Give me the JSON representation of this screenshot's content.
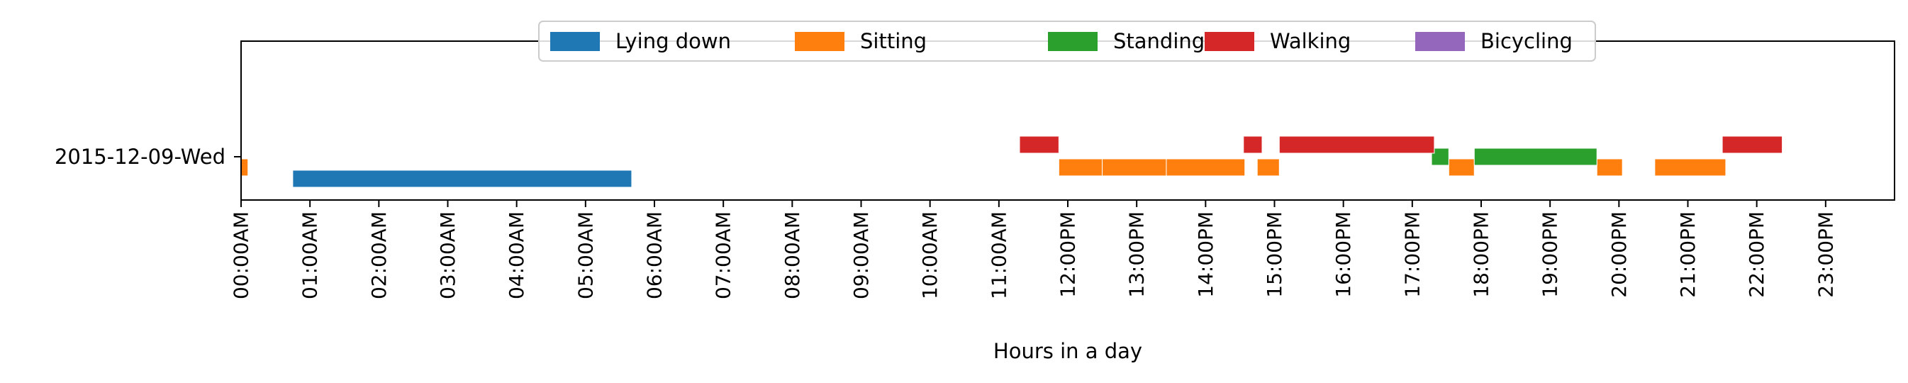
{
  "chart_data": {
    "type": "timeline",
    "title": "",
    "xlabel": "Hours in a day",
    "ylabel": "",
    "xlim": [
      0,
      24
    ],
    "grid": false,
    "legend_placement": "top-center",
    "rows": [
      "2015-12-09-Wed"
    ],
    "x_tick_values": [
      0,
      1,
      2,
      3,
      4,
      5,
      6,
      7,
      8,
      9,
      10,
      11,
      12,
      13,
      14,
      15,
      16,
      17,
      18,
      19,
      20,
      21,
      22,
      23
    ],
    "x_tick_labels": [
      "00:00AM",
      "01:00AM",
      "02:00AM",
      "03:00AM",
      "04:00AM",
      "05:00AM",
      "06:00AM",
      "07:00AM",
      "08:00AM",
      "09:00AM",
      "10:00AM",
      "11:00AM",
      "12:00PM",
      "13:00PM",
      "14:00PM",
      "15:00PM",
      "16:00PM",
      "17:00PM",
      "18:00PM",
      "19:00PM",
      "20:00PM",
      "21:00PM",
      "22:00PM",
      "23:00PM"
    ],
    "series": [
      {
        "name": "Lying down",
        "color": "#1f77b4",
        "segments": [
          [
            0.75,
            5.67
          ]
        ]
      },
      {
        "name": "Sitting",
        "color": "#ff7f0e",
        "segments": [
          [
            0.0,
            0.1
          ],
          [
            11.87,
            12.5
          ],
          [
            12.5,
            13.43
          ],
          [
            13.43,
            14.57
          ],
          [
            14.75,
            15.07
          ],
          [
            17.53,
            17.9
          ],
          [
            19.68,
            20.05
          ],
          [
            20.52,
            21.55
          ]
        ]
      },
      {
        "name": "Standing",
        "color": "#2ca02c",
        "segments": [
          [
            17.28,
            17.53
          ],
          [
            17.9,
            19.68
          ]
        ]
      },
      {
        "name": "Walking",
        "color": "#d62728",
        "segments": [
          [
            11.3,
            11.87
          ],
          [
            14.55,
            14.82
          ],
          [
            15.07,
            17.32
          ],
          [
            21.5,
            22.37
          ]
        ]
      },
      {
        "name": "Bicycling",
        "color": "#9467bd",
        "segments": []
      }
    ]
  }
}
